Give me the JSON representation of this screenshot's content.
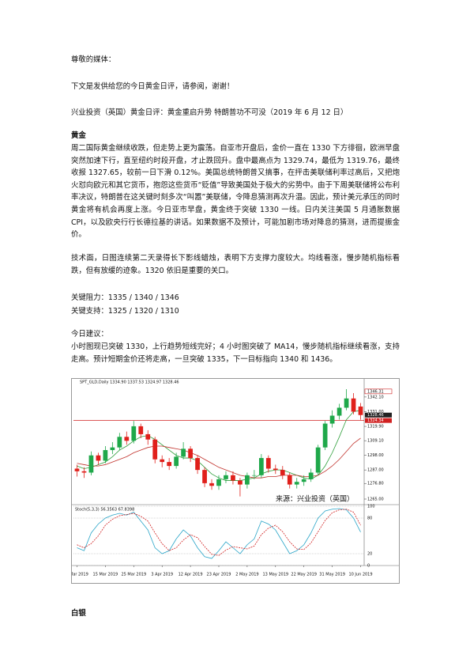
{
  "greeting": "尊敬的媒体：",
  "intro": "下文是发供给您的今日黄金日评，请参阅，谢谢！",
  "headline": "兴业投资（英国）黄金日评：黄金重启升势 特朗普功不可没（2019 年 6 月 12 日）",
  "gold": {
    "heading": "黄金",
    "paragraph": "周二国际黄金继续收跌，但走势上更为震荡。自亚市开盘后，金价一直在 1330 下方徘徊，欧洲早盘突然加速下行，直至纽约时段开盘，才止跌回升。盘中最高点为 1329.74，最低为 1319.76，最终收报 1327.65，较前一日下滑 0.12%。美国总统特朗普又搞事，在抨击美联储利率过高后，又把炮火怼向欧元和其它货币，抱怨这些货币“贬值”导致美国处于极大的劣势中。由于下周美联储将公布利率决议，特朗普在这关键时刻多次“叫嚣”美联储，令降息猜测再次升温。因此，预计美元承压的同时黄金将有机会再度上涨。今日亚市早盘，黄金终于突破 1330 一线。日内关注美国 5 月通胀数据 CPI，以及欧央行行长德拉基的讲话。如果数据不及预计，可能加剧市场对降息的猜测，进而提振金价。",
    "technical": "技术面，日图连续第二天录得长下影线蜡烛，表明下方支撑力度较大。均线看涨，慢步随机指标看跌，但有放缓的迹象。1320 依旧是重要的关口。",
    "resistance": "关键阻力：1335 / 1340 / 1346",
    "support": "关键支持：1325 / 1320 / 1310",
    "advice_title": "今日建议：",
    "advice": "小时图现已突破 1330，上行趋势短线完好；4 小时图突破了 MA14，慢步随机指标继续看涨，支持走高。预计短期金价还将走高，一旦突破 1335，下一目标指向 1340 和 1436。"
  },
  "chart_data": {
    "type": "candlestick",
    "title": "SPT_GLD,Daily 1334.90 1337.53 1324.97 1328.46",
    "watermark": "来源：兴业投资（英国）",
    "categories": [
      "6 Mar 2019",
      null,
      null,
      null,
      "15 Mar 2019",
      null,
      null,
      null,
      "25 Mar 2019",
      null,
      null,
      null,
      "3 Apr 2019",
      null,
      null,
      null,
      "12 Apr 2019",
      null,
      null,
      null,
      "23 Apr 2019",
      null,
      null,
      null,
      "2 May 2019",
      null,
      null,
      null,
      "13 May 2019",
      null,
      null,
      null,
      "22 May 2019",
      null,
      null,
      null,
      "31 May 2019",
      null,
      null,
      null,
      "10 Jun 2019"
    ],
    "open": [
      1288,
      1286,
      1285,
      1298,
      1294,
      1302,
      1304,
      1312,
      1309,
      1320,
      1314,
      1310,
      1295,
      1293,
      1290,
      1297,
      1303,
      1296,
      1287,
      1277,
      1275,
      1280,
      1283,
      1279,
      1276,
      1283,
      1283,
      1296,
      1288,
      1287,
      1283,
      1276,
      1278,
      1280,
      1285,
      1304,
      1322,
      1328,
      1334,
      1341,
      1334.9
    ],
    "high": [
      1291,
      1289,
      1301,
      1300,
      1305,
      1308,
      1315,
      1316,
      1324,
      1322,
      1317,
      1312,
      1298,
      1296,
      1300,
      1308,
      1305,
      1298,
      1289,
      1280,
      1283,
      1286,
      1286,
      1281,
      1285,
      1287,
      1299,
      1298,
      1291,
      1290,
      1285,
      1281,
      1283,
      1288,
      1306,
      1324,
      1332,
      1337,
      1348,
      1345,
      1337.53
    ],
    "low": [
      1282,
      1281,
      1283,
      1291,
      1292,
      1299,
      1302,
      1306,
      1307,
      1311,
      1306,
      1292,
      1289,
      1287,
      1288,
      1295,
      1293,
      1284,
      1274,
      1272,
      1272,
      1277,
      1276,
      1267,
      1273,
      1280,
      1281,
      1285,
      1284,
      1280,
      1273,
      1273,
      1275,
      1278,
      1283,
      1302,
      1319,
      1325,
      1332,
      1329,
      1324.97
    ],
    "close": [
      1286,
      1285,
      1298,
      1294,
      1302,
      1304,
      1312,
      1309,
      1320,
      1314,
      1310,
      1295,
      1293,
      1290,
      1297,
      1303,
      1296,
      1287,
      1277,
      1275,
      1280,
      1283,
      1279,
      1276,
      1283,
      1283,
      1296,
      1288,
      1287,
      1283,
      1276,
      1278,
      1280,
      1285,
      1304,
      1322,
      1328,
      1334,
      1341,
      1331,
      1328.46
    ],
    "up_color": "#1fa84a",
    "down_color": "#e0201b",
    "ma_lines": [
      {
        "color": "#2e9e3a",
        "values": [
          1290,
          1288,
          1289,
          1291,
          1293,
          1297,
          1302,
          1305,
          1309,
          1312,
          1313,
          1310,
          1306,
          1302,
          1298,
          1296,
          1296,
          1294,
          1289,
          1284,
          1281,
          1279,
          1279,
          1279,
          1280,
          1281,
          1284,
          1286,
          1287,
          1287,
          1285,
          1283,
          1281,
          1280,
          1283,
          1290,
          1300,
          1312,
          1325,
          1331,
          1332
        ]
      },
      {
        "color": "#c0302a",
        "values": [
          1292,
          1291,
          1290,
          1290,
          1291,
          1293,
          1295,
          1297,
          1300,
          1302,
          1304,
          1305,
          1305,
          1304,
          1303,
          1302,
          1300,
          1298,
          1295,
          1292,
          1289,
          1287,
          1285,
          1283,
          1282,
          1281,
          1281,
          1282,
          1282,
          1283,
          1283,
          1283,
          1282,
          1282,
          1283,
          1286,
          1290,
          1295,
          1301,
          1307,
          1311
        ]
      }
    ],
    "ylim": [
      1262,
      1351
    ],
    "yticks": [
      {
        "value": 1342.1,
        "label": "1342.10"
      },
      {
        "value": 1331,
        "label": "1331.00"
      },
      {
        "value": 1319.9,
        "label": "1319.90"
      },
      {
        "value": 1309.1,
        "label": "1309.10"
      },
      {
        "value": 1298,
        "label": "1298.00"
      },
      {
        "value": 1287,
        "label": "1287.00"
      },
      {
        "value": 1276.8,
        "label": "1276.80"
      },
      {
        "value": 1265,
        "label": "1265.00"
      }
    ],
    "high_marker": {
      "value": 1346.31,
      "label": "1346.31"
    },
    "last_price": {
      "value": 1328.46,
      "label": "1328.46"
    },
    "hline": {
      "value": 1324.34,
      "label": "1324.34",
      "color": "#d02020"
    },
    "stoch": {
      "title": "Stoch(5,3,3) 56.3563 67.8398",
      "ylim": [
        0,
        100
      ],
      "yticks": [
        100,
        80,
        20,
        0
      ],
      "lines": [
        {
          "color": "#2aa5c8",
          "dashed": false,
          "values": [
            30,
            25,
            55,
            70,
            80,
            85,
            88,
            85,
            90,
            75,
            60,
            30,
            20,
            25,
            45,
            60,
            50,
            30,
            15,
            12,
            25,
            40,
            30,
            20,
            35,
            45,
            75,
            70,
            60,
            40,
            20,
            25,
            35,
            55,
            80,
            92,
            95,
            96,
            94,
            80,
            56.3563
          ]
        },
        {
          "color": "#d02020",
          "dashed": true,
          "values": [
            35,
            30,
            37,
            50,
            68,
            78,
            84,
            86,
            88,
            83,
            75,
            55,
            37,
            25,
            30,
            43,
            52,
            47,
            32,
            19,
            17,
            26,
            32,
            30,
            28,
            33,
            52,
            63,
            68,
            57,
            40,
            28,
            27,
            38,
            57,
            76,
            89,
            94,
            95,
            90,
            67.8398
          ]
        }
      ]
    }
  },
  "silver": {
    "heading": "白银"
  }
}
